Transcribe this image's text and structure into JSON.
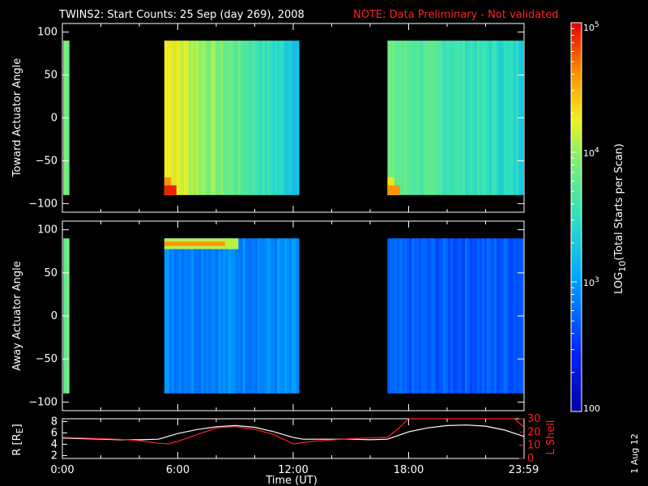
{
  "title": "TWINS2: Start Counts: 25 Sep (day 269), 2008",
  "note": "NOTE: Data Preliminary - Not validated",
  "stamp": "1 Aug 12",
  "colors": {
    "note": "#ff2020",
    "frame": "#ffffff",
    "background": "#000000",
    "orbit_r": "#ffffff",
    "orbit_l": "#ff2020"
  },
  "chart_data": [
    {
      "type": "heatmap",
      "panel": "toward",
      "ylabel": "Toward Actuator Angle",
      "xlim": [
        0,
        24
      ],
      "ylim": [
        -110,
        110
      ],
      "yticks": [
        "100",
        "50",
        "0",
        "−50",
        "−100"
      ],
      "ytick_values": [
        100,
        50,
        0,
        -50,
        -100
      ],
      "angle_range": [
        -90,
        90
      ],
      "scale": "log",
      "data_blocks": [
        {
          "t_start": 0.05,
          "t_end": 0.35,
          "log10_counts": 3.9,
          "note": "narrow strip"
        },
        {
          "t_start": 5.3,
          "t_end": 12.3,
          "log10_counts_start": 4.3,
          "log10_counts_end": 3.3,
          "hot_corner_log10": 4.9
        },
        {
          "t_start": 16.9,
          "t_end": 23.95,
          "log10_counts_start": 3.8,
          "log10_counts_end": 3.4,
          "hot_corner_log10": 4.6
        }
      ]
    },
    {
      "type": "heatmap",
      "panel": "away",
      "ylabel": "Away Actuator Angle",
      "xlim": [
        0,
        24
      ],
      "ylim": [
        -110,
        110
      ],
      "yticks": [
        "100",
        "50",
        "0",
        "−50",
        "−100"
      ],
      "ytick_values": [
        100,
        50,
        0,
        -50,
        -100
      ],
      "angle_range": [
        -90,
        90
      ],
      "scale": "log",
      "data_blocks": [
        {
          "t_start": 0.05,
          "t_end": 0.35,
          "log10_counts": 3.9,
          "note": "narrow strip"
        },
        {
          "t_start": 5.3,
          "t_end": 12.3,
          "log10_counts": 2.9,
          "hot_band_angle": 85,
          "hot_band_log10": 4.6
        },
        {
          "t_start": 16.9,
          "t_end": 23.95,
          "log10_counts": 2.7
        }
      ]
    },
    {
      "type": "line",
      "panel": "orbit",
      "xlabel": "Time (UT)",
      "xticks": [
        "0:00",
        "6:00",
        "12:00",
        "18:00",
        "23:59"
      ],
      "xtick_values": [
        0,
        6,
        12,
        18,
        23.98
      ],
      "ylabel_left": "R [R",
      "ylabel_left_sub": "E",
      "ylabel_left_end": "]",
      "ylabel_right": "L Shell",
      "yticks_left": [
        "8",
        "6",
        "4",
        "2"
      ],
      "ytick_left_values": [
        8,
        6,
        4,
        2
      ],
      "yticks_right": [
        "30",
        "20",
        "10",
        "0"
      ],
      "ytick_right_values": [
        30,
        20,
        10,
        0
      ],
      "ylim_left": [
        1.5,
        8.5
      ],
      "ylim_right": [
        0,
        30
      ],
      "series": [
        {
          "axis": "left",
          "x": [
            0,
            1,
            2,
            3,
            4,
            5,
            5.5,
            6,
            7,
            8,
            9,
            10,
            11,
            12,
            12.5,
            13,
            14,
            15,
            16,
            16.9,
            17.5,
            18,
            19,
            20,
            21,
            22,
            23,
            23.98
          ],
          "y": [
            5.1,
            5.0,
            4.9,
            4.8,
            4.8,
            4.9,
            5.4,
            5.9,
            6.6,
            7.1,
            7.3,
            7.0,
            6.2,
            5.2,
            4.9,
            4.9,
            4.9,
            4.9,
            4.8,
            4.9,
            5.6,
            6.2,
            6.9,
            7.3,
            7.4,
            7.2,
            6.5,
            5.4
          ]
        },
        {
          "axis": "right",
          "x": [
            0,
            1,
            2,
            3,
            4,
            5,
            5.5,
            6,
            7,
            8,
            9,
            10,
            11,
            12,
            12.5,
            13,
            14,
            15,
            16,
            16.9,
            17.5,
            18,
            19,
            20,
            21,
            22,
            23,
            23.5,
            23.98
          ],
          "y": [
            16,
            15.5,
            15,
            14.5,
            13.5,
            11.5,
            11,
            13,
            18,
            23,
            24,
            22,
            18,
            11,
            12,
            13,
            14,
            15,
            15.5,
            16,
            23,
            31,
            32,
            32,
            32,
            32,
            32,
            31,
            24
          ]
        }
      ]
    }
  ],
  "colorbar": {
    "label": "LOG",
    "label_sub": "10",
    "label_end": "(Total Starts per Scan)",
    "range_log10": [
      2,
      5
    ],
    "ticks": [
      {
        "base": "10",
        "exp": "5",
        "log": 5
      },
      {
        "base": "10",
        "exp": "4",
        "log": 4
      },
      {
        "base": "10",
        "exp": "3",
        "log": 3
      },
      {
        "base": "100",
        "exp": "",
        "log": 2
      }
    ]
  }
}
